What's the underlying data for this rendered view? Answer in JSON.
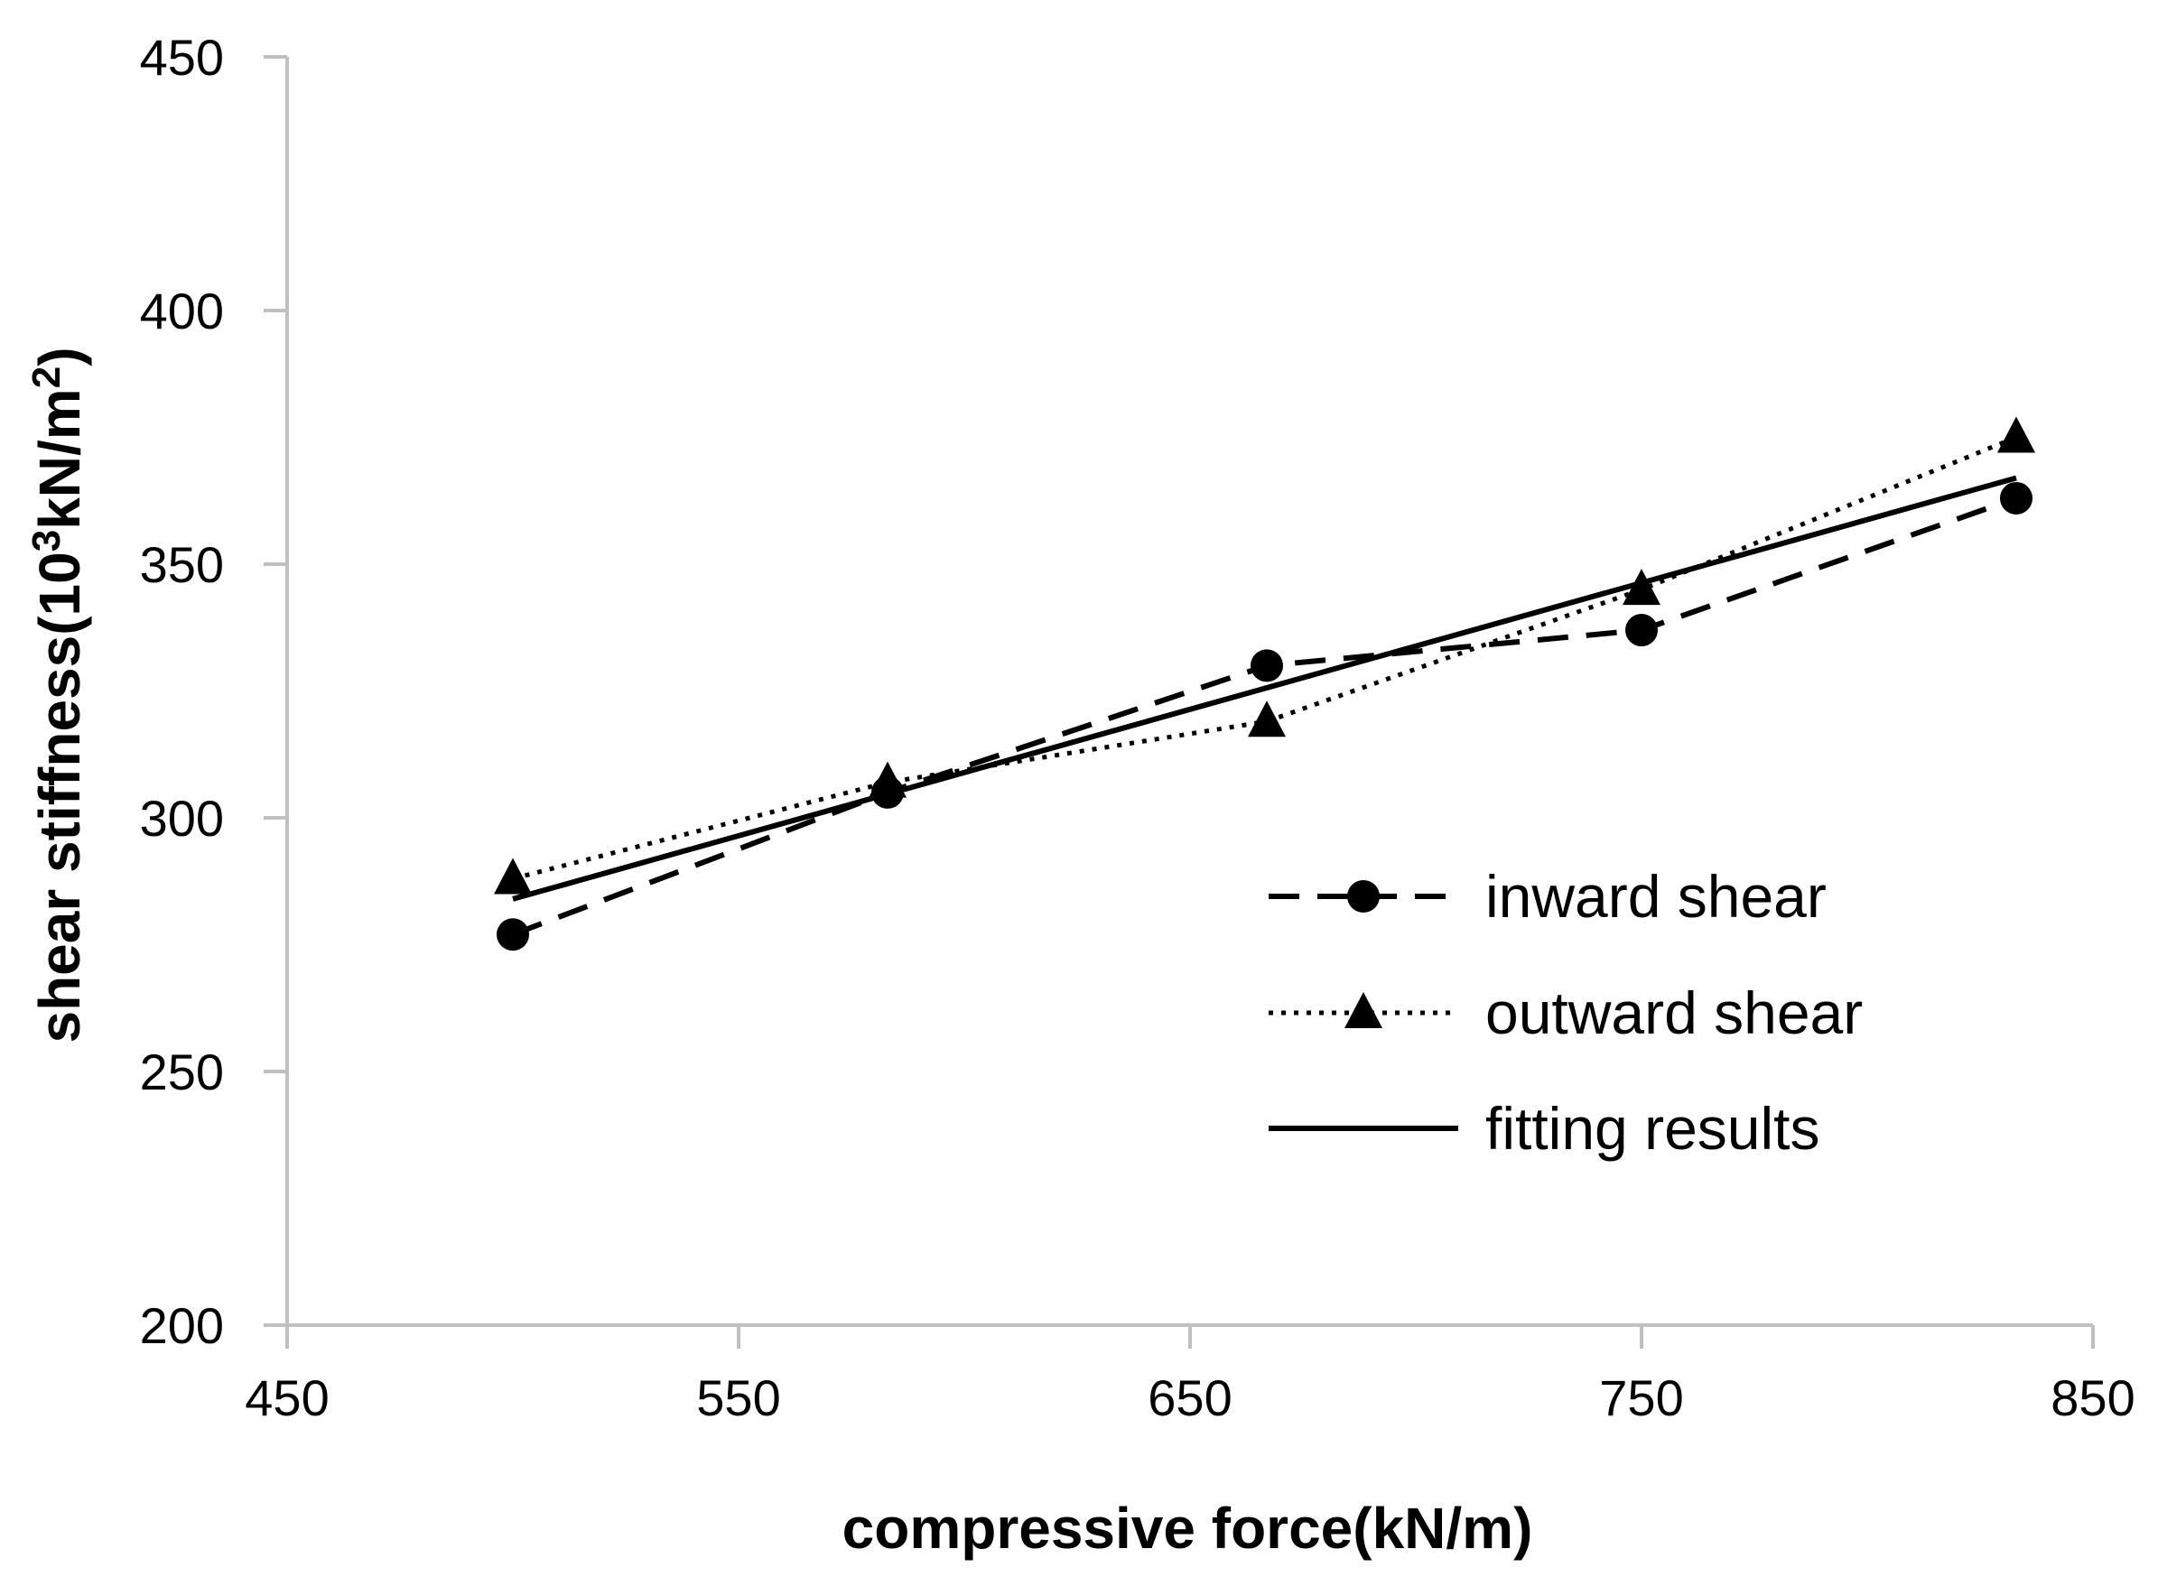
{
  "chart_data": {
    "type": "line",
    "title": "",
    "xlabel": "compressive force(kN/m)",
    "ylabel": "shear stiffness(10³kN/m²)",
    "ylabel_parts": {
      "pre": "shear stiffness(10",
      "sup1": "3",
      "mid": "kN/m",
      "sup2": "2",
      "post": ")"
    },
    "xlim": [
      450,
      850
    ],
    "ylim": [
      200,
      450
    ],
    "xticks": [
      450,
      550,
      650,
      750,
      850
    ],
    "yticks": [
      200,
      250,
      300,
      350,
      400,
      450
    ],
    "xtick_labels": [
      "450",
      "550",
      "650",
      "750",
      "850"
    ],
    "ytick_labels": [
      "200",
      "250",
      "300",
      "350",
      "400",
      "450"
    ],
    "grid": false,
    "legend_position": "right",
    "series": [
      {
        "name": "inward shear",
        "style": "dashed",
        "marker": "circle",
        "color": "#000000",
        "x": [
          500,
          583,
          667,
          750,
          833
        ],
        "y": [
          277,
          305,
          330,
          337,
          363
        ]
      },
      {
        "name": "outward shear",
        "style": "dotted",
        "marker": "triangle",
        "color": "#000000",
        "x": [
          500,
          583,
          667,
          750,
          833
        ],
        "y": [
          288,
          307,
          319,
          345,
          375
        ]
      },
      {
        "name": "fitting results",
        "style": "solid",
        "marker": "none",
        "color": "#000000",
        "x": [
          500,
          833
        ],
        "y": [
          284,
          367
        ]
      }
    ]
  }
}
